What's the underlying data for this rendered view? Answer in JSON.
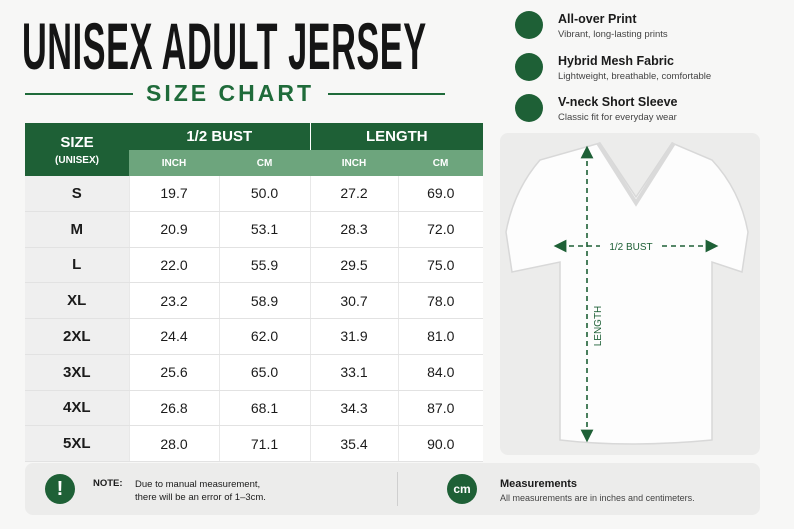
{
  "header": {
    "title": "UNISEX ADULT JERSEY",
    "subtitle": "SIZE CHART"
  },
  "table": {
    "size_header": "SIZE",
    "size_subheader": "(UNISEX)",
    "groups": [
      "1/2 BUST",
      "LENGTH"
    ],
    "units": [
      "INCH",
      "CM",
      "INCH",
      "CM"
    ],
    "rows": [
      [
        "S",
        "19.7",
        "50.0",
        "27.2",
        "69.0"
      ],
      [
        "M",
        "20.9",
        "53.1",
        "28.3",
        "72.0"
      ],
      [
        "L",
        "22.0",
        "55.9",
        "29.5",
        "75.0"
      ],
      [
        "XL",
        "23.2",
        "58.9",
        "30.7",
        "78.0"
      ],
      [
        "2XL",
        "24.4",
        "62.0",
        "31.9",
        "81.0"
      ],
      [
        "3XL",
        "25.6",
        "65.0",
        "33.1",
        "84.0"
      ],
      [
        "4XL",
        "26.8",
        "68.1",
        "34.3",
        "87.0"
      ],
      [
        "5XL",
        "28.0",
        "71.1",
        "35.4",
        "90.0"
      ]
    ]
  },
  "features": [
    {
      "title": "All-over Print",
      "description": "Vibrant, long-lasting prints"
    },
    {
      "title": "Hybrid Mesh Fabric",
      "description": "Lightweight, breathable, comfortable"
    },
    {
      "title": "V-neck Short Sleeve",
      "description": "Classic fit for everyday wear"
    }
  ],
  "diagram": {
    "bust_label": "1/2 BUST",
    "length_label": "LENGTH"
  },
  "footer": {
    "note_label": "NOTE:",
    "note_lines": [
      "Due to manual measurement,",
      "there will be an error of 1–3cm."
    ],
    "measure_icon": "cm",
    "measure_title": "Measurements",
    "measure_text": "All measurements are in inches and centimeters."
  }
}
